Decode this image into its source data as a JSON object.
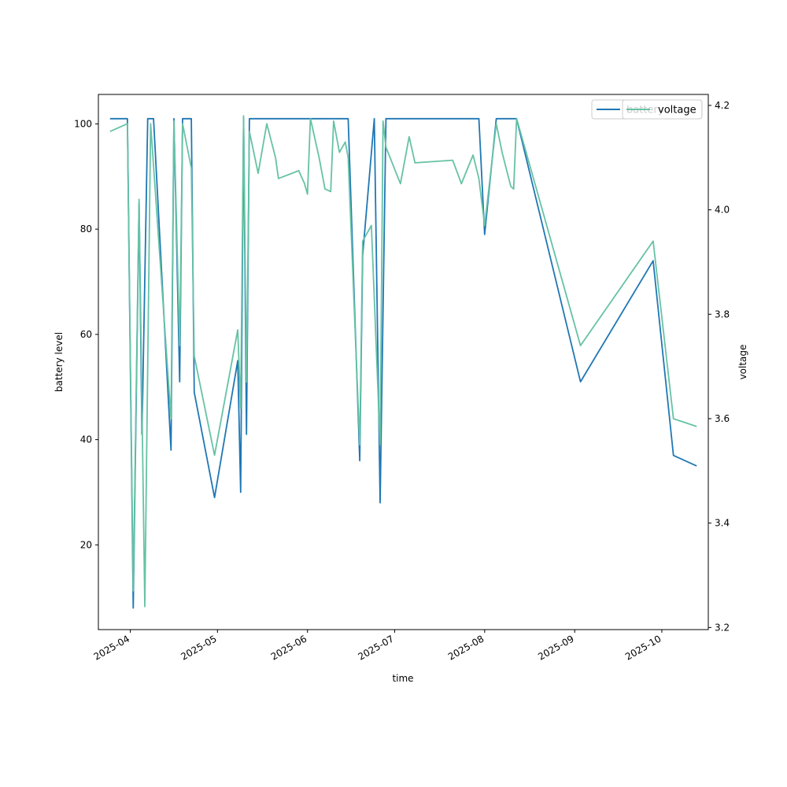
{
  "chart_data": {
    "type": "line",
    "xlabel": "time",
    "ylabel": "battery level",
    "ylabel_right": "voltage",
    "x_type": "date",
    "xlim": [
      "2025-03-21",
      "2025-10-17"
    ],
    "ylim": [
      3.9,
      105.6
    ],
    "ylim_right": [
      3.196,
      4.221
    ],
    "x_ticks": [
      "2025-04-01",
      "2025-05-01",
      "2025-06-01",
      "2025-07-01",
      "2025-08-01",
      "2025-09-01",
      "2025-10-01"
    ],
    "x_tick_labels": [
      "2025-04",
      "2025-05",
      "2025-06",
      "2025-07",
      "2025-08",
      "2025-09",
      "2025-10"
    ],
    "y_ticks": [
      20,
      40,
      60,
      80,
      100
    ],
    "y_tick_labels": [
      "20",
      "40",
      "60",
      "80",
      "100"
    ],
    "y_ticks_right": [
      3.2,
      3.4,
      3.6,
      3.8,
      4.0,
      4.2
    ],
    "y_tick_labels_right": [
      "3.2",
      "3.4",
      "3.6",
      "3.8",
      "4.0",
      "4.2"
    ],
    "legend": {
      "position": "top-right",
      "left_entry": "battery",
      "right_entry": "voltage"
    },
    "series": [
      {
        "name": "battery",
        "axis": "left",
        "color": "#1f77b4",
        "points": [
          [
            "2025-03-25",
            101
          ],
          [
            "2025-03-31",
            101
          ],
          [
            "2025-04-02",
            8
          ],
          [
            "2025-04-04",
            85
          ],
          [
            "2025-04-05",
            41
          ],
          [
            "2025-04-07",
            101
          ],
          [
            "2025-04-09",
            101
          ],
          [
            "2025-04-15",
            38
          ],
          [
            "2025-04-16",
            101
          ],
          [
            "2025-04-18",
            51
          ],
          [
            "2025-04-19",
            101
          ],
          [
            "2025-04-22",
            101
          ],
          [
            "2025-04-23",
            49
          ],
          [
            "2025-04-30",
            29
          ],
          [
            "2025-05-08",
            55
          ],
          [
            "2025-05-09",
            30
          ],
          [
            "2025-05-10",
            101
          ],
          [
            "2025-05-11",
            41
          ],
          [
            "2025-05-12",
            101
          ],
          [
            "2025-06-15",
            101
          ],
          [
            "2025-06-19",
            36
          ],
          [
            "2025-06-20",
            75
          ],
          [
            "2025-06-24",
            101
          ],
          [
            "2025-06-26",
            28
          ],
          [
            "2025-06-28",
            101
          ],
          [
            "2025-07-30",
            101
          ],
          [
            "2025-08-01",
            79
          ],
          [
            "2025-08-05",
            101
          ],
          [
            "2025-08-12",
            101
          ],
          [
            "2025-09-03",
            51
          ],
          [
            "2025-09-28",
            74
          ],
          [
            "2025-10-05",
            37
          ],
          [
            "2025-10-13",
            35
          ]
        ]
      },
      {
        "name": "voltage",
        "axis": "right",
        "color": "#66c2a5",
        "points": [
          [
            "2025-03-25",
            4.15
          ],
          [
            "2025-03-31",
            4.165
          ],
          [
            "2025-04-02",
            3.27
          ],
          [
            "2025-04-04",
            4.02
          ],
          [
            "2025-04-06",
            3.24
          ],
          [
            "2025-04-08",
            4.165
          ],
          [
            "2025-04-15",
            3.6
          ],
          [
            "2025-04-16",
            4.17
          ],
          [
            "2025-04-18",
            3.74
          ],
          [
            "2025-04-19",
            4.165
          ],
          [
            "2025-04-22",
            4.08
          ],
          [
            "2025-04-23",
            3.72
          ],
          [
            "2025-04-30",
            3.53
          ],
          [
            "2025-05-08",
            3.77
          ],
          [
            "2025-05-09",
            3.62
          ],
          [
            "2025-05-10",
            4.18
          ],
          [
            "2025-05-11",
            3.67
          ],
          [
            "2025-05-12",
            4.15
          ],
          [
            "2025-05-15",
            4.07
          ],
          [
            "2025-05-18",
            4.165
          ],
          [
            "2025-05-21",
            4.1
          ],
          [
            "2025-05-22",
            4.06
          ],
          [
            "2025-05-29",
            4.075
          ],
          [
            "2025-05-31",
            4.05
          ],
          [
            "2025-06-01",
            4.03
          ],
          [
            "2025-06-02",
            4.175
          ],
          [
            "2025-06-05",
            4.1
          ],
          [
            "2025-06-07",
            4.04
          ],
          [
            "2025-06-09",
            4.035
          ],
          [
            "2025-06-10",
            4.17
          ],
          [
            "2025-06-12",
            4.11
          ],
          [
            "2025-06-14",
            4.13
          ],
          [
            "2025-06-15",
            4.1
          ],
          [
            "2025-06-19",
            3.55
          ],
          [
            "2025-06-20",
            3.94
          ],
          [
            "2025-06-23",
            3.97
          ],
          [
            "2025-06-26",
            3.55
          ],
          [
            "2025-06-27",
            4.17
          ],
          [
            "2025-06-28",
            4.12
          ],
          [
            "2025-07-03",
            4.05
          ],
          [
            "2025-07-06",
            4.14
          ],
          [
            "2025-07-08",
            4.09
          ],
          [
            "2025-07-21",
            4.095
          ],
          [
            "2025-07-24",
            4.05
          ],
          [
            "2025-07-28",
            4.105
          ],
          [
            "2025-07-30",
            4.06
          ],
          [
            "2025-08-01",
            3.97
          ],
          [
            "2025-08-05",
            4.165
          ],
          [
            "2025-08-07",
            4.11
          ],
          [
            "2025-08-10",
            4.045
          ],
          [
            "2025-08-11",
            4.04
          ],
          [
            "2025-08-12",
            4.175
          ],
          [
            "2025-09-03",
            3.74
          ],
          [
            "2025-09-28",
            3.94
          ],
          [
            "2025-10-05",
            3.6
          ],
          [
            "2025-10-13",
            3.585
          ]
        ]
      }
    ]
  }
}
